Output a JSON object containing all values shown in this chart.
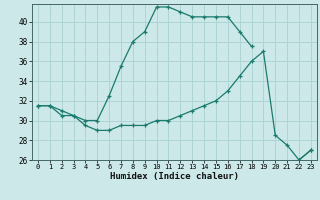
{
  "xlabel": "Humidex (Indice chaleur)",
  "bg_color": "#cce8e8",
  "line_color": "#1a7a6e",
  "grid_color": "#aed4d4",
  "xlim": [
    -0.5,
    23.5
  ],
  "ylim": [
    26,
    41.8
  ],
  "yticks": [
    26,
    28,
    30,
    32,
    34,
    36,
    38,
    40
  ],
  "xticks": [
    0,
    1,
    2,
    3,
    4,
    5,
    6,
    7,
    8,
    9,
    10,
    11,
    12,
    13,
    14,
    15,
    16,
    17,
    18,
    19,
    20,
    21,
    22,
    23
  ],
  "curve1_x": [
    0,
    1,
    2,
    3,
    4,
    5,
    6,
    7,
    8,
    9,
    10,
    11,
    12,
    13,
    14,
    15,
    16,
    17,
    18,
    19,
    20,
    21,
    22,
    23
  ],
  "curve1_y": [
    31.5,
    31.5,
    31.0,
    30.5,
    30.0,
    30.0,
    32.5,
    35.5,
    38.0,
    39.0,
    41.5,
    41.5,
    41.0,
    40.5,
    40.5,
    40.5,
    40.5,
    39.0,
    37.5,
    null,
    null,
    null,
    26.0,
    27.0
  ],
  "curve2_x": [
    0,
    1,
    2,
    3,
    4,
    5,
    6,
    7,
    8,
    9,
    10,
    11,
    12,
    13,
    14,
    15,
    16,
    17,
    18,
    19,
    20,
    21,
    22,
    23
  ],
  "curve2_y": [
    31.5,
    31.5,
    30.5,
    30.5,
    29.5,
    29.0,
    29.0,
    29.5,
    29.5,
    29.5,
    30.0,
    30.0,
    30.5,
    31.0,
    31.5,
    32.0,
    33.0,
    34.5,
    36.0,
    37.0,
    28.5,
    27.5,
    26.0,
    27.0
  ]
}
